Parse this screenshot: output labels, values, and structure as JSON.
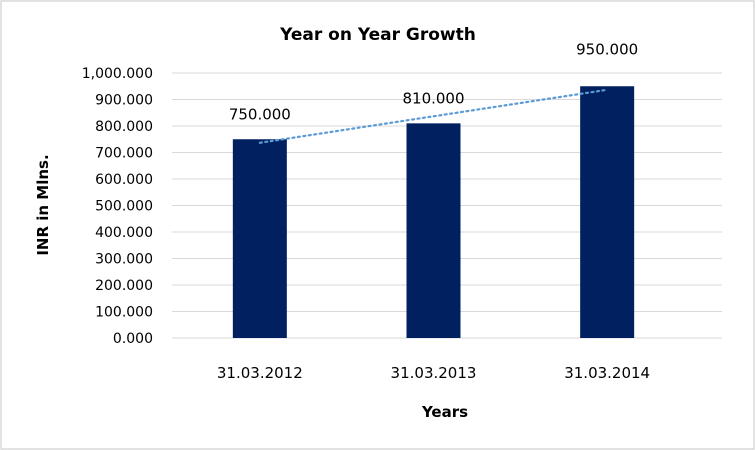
{
  "chart_data": {
    "type": "bar",
    "title": "Year on Year Growth",
    "xlabel": "Years",
    "ylabel": "INR in Mlns.",
    "categories": [
      "31.03.2012",
      "31.03.2013",
      "31.03.2014"
    ],
    "values": [
      750,
      810,
      950
    ],
    "data_labels": [
      "750.000",
      "810.000",
      "950.000"
    ],
    "ylim": [
      0,
      1000
    ],
    "yticks": [
      0,
      100,
      200,
      300,
      400,
      500,
      600,
      700,
      800,
      900,
      1000
    ],
    "ytick_labels": [
      "0.000",
      "100.000",
      "200.000",
      "300.000",
      "400.000",
      "500.000",
      "600.000",
      "700.000",
      "800.000",
      "900.000",
      "1,000.000"
    ],
    "grid": true,
    "trendline": "linear (dotted)",
    "colors": {
      "bar": "#002060",
      "trendline": "#5b9bd5",
      "grid": "#d9d9d9",
      "border": "#d9d9d9"
    }
  }
}
